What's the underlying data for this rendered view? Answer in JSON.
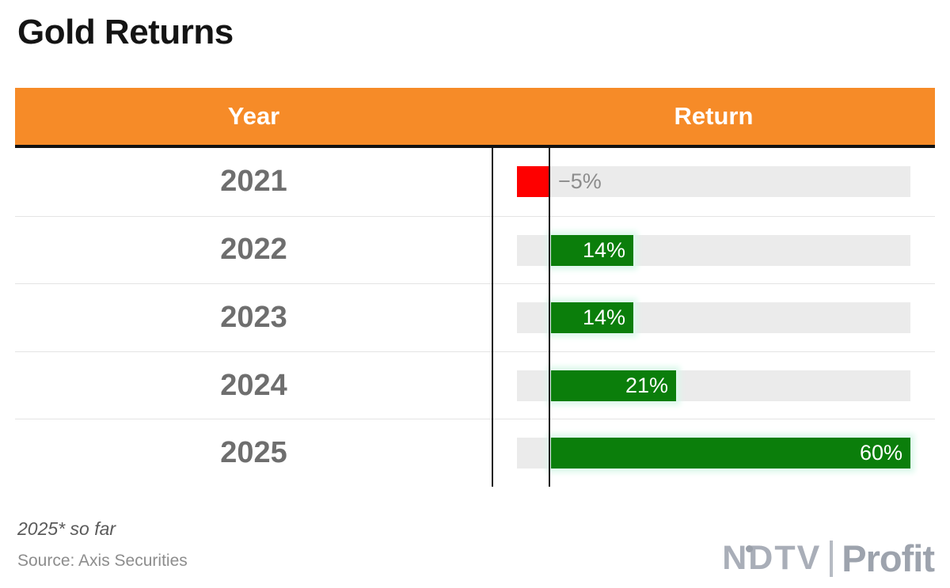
{
  "page_title": "Gold Returns",
  "header": {
    "year_label": "Year",
    "return_label": "Return"
  },
  "chart_data": {
    "type": "bar",
    "orientation": "horizontal",
    "title": "Gold Returns",
    "categories": [
      "2021",
      "2022",
      "2023",
      "2024",
      "2025"
    ],
    "values": [
      -5,
      14,
      14,
      21,
      60
    ],
    "value_labels": [
      "−5%",
      "14%",
      "14%",
      "21%",
      "60%"
    ],
    "series_name": "Return",
    "unit": "%",
    "xlim": [
      -5.4,
      60
    ],
    "grid": false,
    "legend_position": "none",
    "note": "2025* so far"
  },
  "footnote": "2025* so far",
  "source": "Source: Axis Securities",
  "logo": {
    "brand": "NDTV",
    "product": "Profit"
  },
  "colors": {
    "header_bg": "#f68b28",
    "header_text": "#ffffff",
    "positive_bar": "#0b7e0b",
    "negative_bar": "#fe0000",
    "bar_track": "#ebebeb",
    "bar_glow": "#dcf8ec",
    "year_text": "#6e6e6e",
    "neg_label": "#8c8c8c",
    "logo_gray": "#a9aeb8"
  }
}
